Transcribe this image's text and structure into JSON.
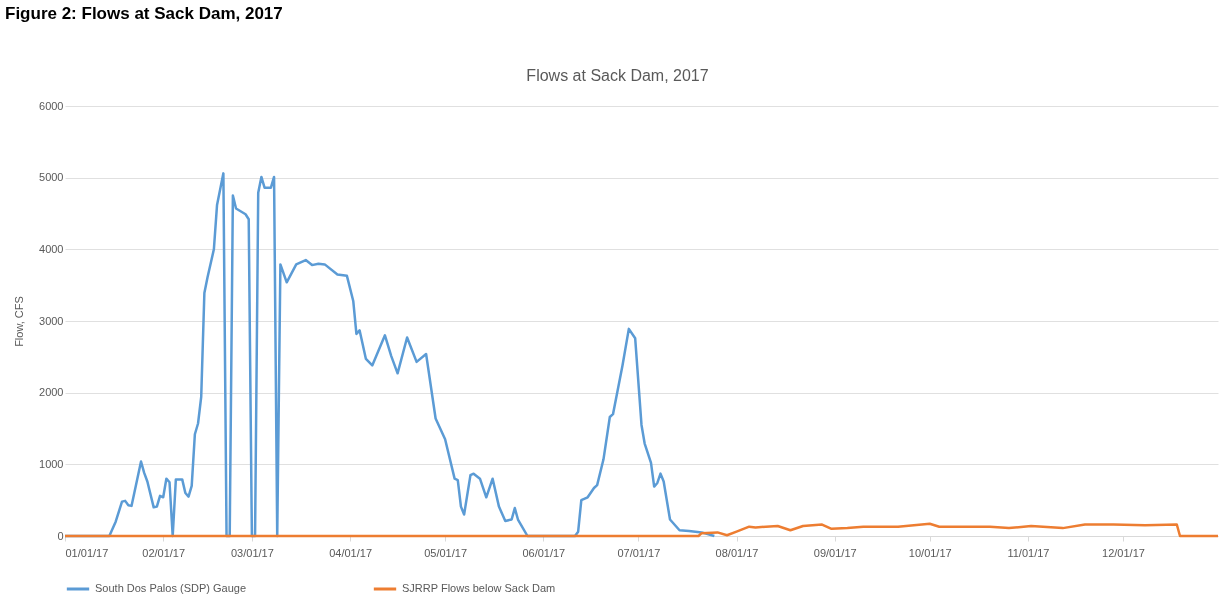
{
  "chart_data": {
    "type": "line",
    "title": "Figure 2: Flows at Sack Dam, 2017",
    "subtitle": "Flows at Sack Dam, 2017",
    "ylabel": "Flow, CFS",
    "xlim": [
      "2017-01-01",
      "2017-12-31"
    ],
    "xticks": [
      {
        "value": "2017-01-01",
        "label": "01/01/17"
      },
      {
        "value": "2017-02-01",
        "label": "02/01/17"
      },
      {
        "value": "2017-03-01",
        "label": "03/01/17"
      },
      {
        "value": "2017-04-01",
        "label": "04/01/17"
      },
      {
        "value": "2017-05-01",
        "label": "05/01/17"
      },
      {
        "value": "2017-06-01",
        "label": "06/01/17"
      },
      {
        "value": "2017-07-01",
        "label": "07/01/17"
      },
      {
        "value": "2017-08-01",
        "label": "08/01/17"
      },
      {
        "value": "2017-09-01",
        "label": "09/01/17"
      },
      {
        "value": "2017-10-01",
        "label": "10/01/17"
      },
      {
        "value": "2017-11-01",
        "label": "11/01/17"
      },
      {
        "value": "2017-12-01",
        "label": "12/01/17"
      }
    ],
    "ylim": [
      0,
      6000
    ],
    "yticks": [
      0,
      1000,
      2000,
      3000,
      4000,
      5000,
      6000
    ],
    "grid": "y",
    "legend": "bottom",
    "marker": "none",
    "line_style": "solid",
    "series": [
      {
        "name": "South Dos Palos (SDP) Gauge",
        "color": "#5b9bd5",
        "x": [
          "2017-01-01",
          "2017-01-15",
          "2017-01-17",
          "2017-01-19",
          "2017-01-20",
          "2017-01-21",
          "2017-01-22",
          "2017-01-25",
          "2017-01-26",
          "2017-01-27",
          "2017-01-29",
          "2017-01-30",
          "2017-01-31",
          "2017-02-01",
          "2017-02-02",
          "2017-02-03",
          "2017-02-04",
          "2017-02-05",
          "2017-02-07",
          "2017-02-08",
          "2017-02-09",
          "2017-02-10",
          "2017-02-11",
          "2017-02-12",
          "2017-02-13",
          "2017-02-14",
          "2017-02-15",
          "2017-02-17",
          "2017-02-18",
          "2017-02-20",
          "2017-02-21",
          "2017-02-22",
          "2017-02-23",
          "2017-02-24",
          "2017-02-27",
          "2017-02-28",
          "2017-03-01",
          "2017-03-02",
          "2017-03-03",
          "2017-03-04",
          "2017-03-05",
          "2017-03-07",
          "2017-03-08",
          "2017-03-09",
          "2017-03-10",
          "2017-03-12",
          "2017-03-15",
          "2017-03-18",
          "2017-03-20",
          "2017-03-22",
          "2017-03-24",
          "2017-03-28",
          "2017-03-31",
          "2017-04-02",
          "2017-04-03",
          "2017-04-04",
          "2017-04-06",
          "2017-04-08",
          "2017-04-12",
          "2017-04-14",
          "2017-04-16",
          "2017-04-19",
          "2017-04-22",
          "2017-04-25",
          "2017-04-28",
          "2017-05-01",
          "2017-05-04",
          "2017-05-05",
          "2017-05-06",
          "2017-05-07",
          "2017-05-09",
          "2017-05-10",
          "2017-05-12",
          "2017-05-14",
          "2017-05-16",
          "2017-05-18",
          "2017-05-20",
          "2017-05-22",
          "2017-05-23",
          "2017-05-24",
          "2017-05-27",
          "2017-06-11",
          "2017-06-12",
          "2017-06-13",
          "2017-06-15",
          "2017-06-17",
          "2017-06-18",
          "2017-06-20",
          "2017-06-22",
          "2017-06-23",
          "2017-06-26",
          "2017-06-28",
          "2017-06-30",
          "2017-07-02",
          "2017-07-03",
          "2017-07-05",
          "2017-07-06",
          "2017-07-07",
          "2017-07-08",
          "2017-07-09",
          "2017-07-11",
          "2017-07-14",
          "2017-07-17",
          "2017-07-21",
          "2017-07-25"
        ],
        "values": [
          0,
          0,
          200,
          480,
          490,
          430,
          420,
          1040,
          880,
          760,
          400,
          410,
          560,
          540,
          800,
          750,
          0,
          790,
          790,
          600,
          550,
          700,
          1420,
          1570,
          1940,
          3390,
          3610,
          4000,
          4620,
          5060,
          0,
          0,
          4750,
          4570,
          4490,
          4420,
          0,
          0,
          4790,
          5010,
          4860,
          4860,
          5010,
          0,
          3790,
          3540,
          3790,
          3850,
          3780,
          3800,
          3790,
          3650,
          3630,
          3280,
          2820,
          2870,
          2470,
          2380,
          2800,
          2510,
          2270,
          2770,
          2430,
          2540,
          1640,
          1350,
          800,
          780,
          410,
          300,
          850,
          870,
          800,
          540,
          800,
          410,
          210,
          230,
          390,
          230,
          0,
          0,
          60,
          500,
          540,
          670,
          710,
          1070,
          1660,
          1700,
          2380,
          2890,
          2760,
          1550,
          1290,
          1020,
          690,
          740,
          870,
          760,
          230,
          80,
          70,
          50,
          0
        ]
      },
      {
        "name": "SJRRP Flows below Sack Dam",
        "color": "#ed7d31",
        "x": [
          "2017-01-01",
          "2017-07-20",
          "2017-07-21",
          "2017-07-26",
          "2017-07-29",
          "2017-08-01",
          "2017-08-05",
          "2017-08-07",
          "2017-08-14",
          "2017-08-18",
          "2017-08-22",
          "2017-08-28",
          "2017-08-31",
          "2017-09-05",
          "2017-09-10",
          "2017-09-21",
          "2017-10-01",
          "2017-10-04",
          "2017-10-13",
          "2017-10-20",
          "2017-10-26",
          "2017-11-02",
          "2017-11-12",
          "2017-11-19",
          "2017-11-28",
          "2017-12-08",
          "2017-12-18",
          "2017-12-19",
          "2017-12-31"
        ],
        "values": [
          0,
          0,
          40,
          50,
          10,
          60,
          130,
          120,
          140,
          80,
          140,
          160,
          100,
          110,
          130,
          130,
          170,
          130,
          130,
          130,
          110,
          140,
          110,
          160,
          160,
          150,
          160,
          0,
          0
        ]
      }
    ]
  }
}
